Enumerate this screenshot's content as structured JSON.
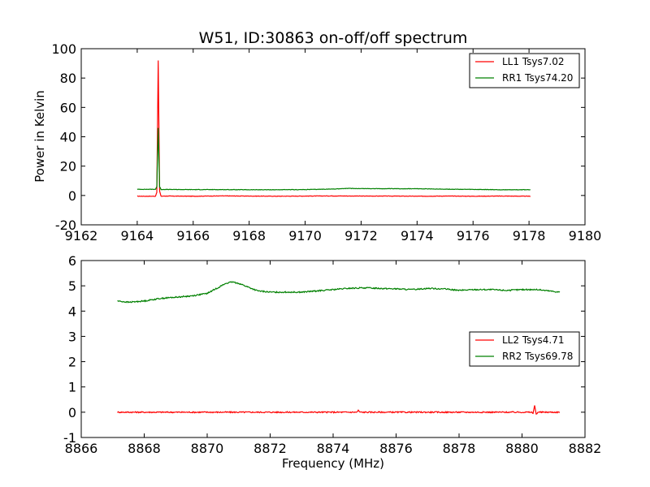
{
  "chart_data": [
    {
      "type": "line",
      "title": "W51, ID:30863 on-off/off spectrum",
      "xlabel": "",
      "ylabel": "Power in Kelvin",
      "xlim": [
        9162,
        9180
      ],
      "ylim": [
        -20,
        100
      ],
      "xticks": [
        9162,
        9164,
        9166,
        9168,
        9170,
        9172,
        9174,
        9176,
        9178,
        9180
      ],
      "yticks": [
        -20,
        0,
        20,
        40,
        60,
        80,
        100
      ],
      "legend_position": "top-right",
      "grid": false,
      "series": [
        {
          "name": "LL1 Tsys7.02",
          "color": "#ff0000",
          "x": [
            9164.0,
            9164.5,
            9164.65,
            9164.7,
            9164.75,
            9164.8,
            9164.85,
            9165.0,
            9166.0,
            9167.0,
            9168.0,
            9169.0,
            9170.0,
            9171.0,
            9172.0,
            9173.0,
            9174.0,
            9175.0,
            9176.0,
            9177.0,
            9178.05
          ],
          "y": [
            -0.5,
            -0.5,
            -0.5,
            2,
            92,
            3,
            -0.5,
            -0.4,
            -0.5,
            -0.3,
            -0.4,
            -0.5,
            -0.4,
            -0.3,
            -0.4,
            -0.4,
            -0.5,
            -0.4,
            -0.5,
            -0.4,
            -0.5
          ]
        },
        {
          "name": "RR1 Tsys74.20",
          "color": "#008000",
          "x": [
            9164.0,
            9164.5,
            9164.65,
            9164.7,
            9164.75,
            9164.8,
            9164.85,
            9165.0,
            9166.0,
            9167.0,
            9168.0,
            9169.0,
            9170.0,
            9170.5,
            9171.0,
            9171.5,
            9172.0,
            9173.0,
            9174.0,
            9175.0,
            9176.0,
            9177.0,
            9178.05
          ],
          "y": [
            4.2,
            4.2,
            4.2,
            6,
            46,
            6,
            4.1,
            4.1,
            4.0,
            4.0,
            3.9,
            3.9,
            4.0,
            4.2,
            4.4,
            4.8,
            4.7,
            4.6,
            4.6,
            4.3,
            4.1,
            3.9,
            3.9
          ]
        }
      ]
    },
    {
      "type": "line",
      "title": "",
      "xlabel": "Frequency (MHz)",
      "ylabel": "",
      "xlim": [
        8866,
        8882
      ],
      "ylim": [
        -1,
        6
      ],
      "xticks": [
        8866,
        8868,
        8870,
        8872,
        8874,
        8876,
        8878,
        8880,
        8882
      ],
      "yticks": [
        -1,
        0,
        1,
        2,
        3,
        4,
        5,
        6
      ],
      "legend_position": "center-right",
      "grid": false,
      "series": [
        {
          "name": "LL2 Tsys4.71",
          "color": "#ff0000",
          "x": [
            8867.15,
            8868.0,
            8869.0,
            8870.0,
            8871.0,
            8872.0,
            8873.0,
            8874.0,
            8874.75,
            8874.8,
            8874.85,
            8875.0,
            8876.0,
            8877.0,
            8878.0,
            8879.0,
            8880.0,
            8880.3,
            8880.35,
            8880.4,
            8880.45,
            8880.5,
            8881.0,
            8881.2
          ],
          "y": [
            0.0,
            0.0,
            0.0,
            0.0,
            0.0,
            0.0,
            0.0,
            0.0,
            0.0,
            0.07,
            0.0,
            0.0,
            0.0,
            0.0,
            0.0,
            0.0,
            0.0,
            0.0,
            -0.05,
            0.27,
            -0.08,
            0.0,
            0.0,
            0.0
          ]
        },
        {
          "name": "RR2 Tsys69.78",
          "color": "#008000",
          "x": [
            8867.15,
            8867.5,
            8868.0,
            8868.5,
            8869.0,
            8869.5,
            8870.0,
            8870.3,
            8870.6,
            8870.8,
            8871.0,
            8871.3,
            8871.6,
            8872.0,
            8872.5,
            8873.0,
            8873.5,
            8874.0,
            8874.5,
            8875.0,
            8875.5,
            8876.0,
            8876.5,
            8877.0,
            8877.5,
            8878.0,
            8878.5,
            8879.0,
            8879.5,
            8880.0,
            8880.5,
            8881.2
          ],
          "y": [
            4.4,
            4.35,
            4.4,
            4.5,
            4.55,
            4.6,
            4.7,
            4.9,
            5.1,
            5.15,
            5.1,
            4.95,
            4.8,
            4.75,
            4.75,
            4.75,
            4.8,
            4.85,
            4.9,
            4.92,
            4.9,
            4.88,
            4.85,
            4.9,
            4.88,
            4.82,
            4.85,
            4.85,
            4.82,
            4.85,
            4.85,
            4.75
          ]
        }
      ]
    }
  ]
}
